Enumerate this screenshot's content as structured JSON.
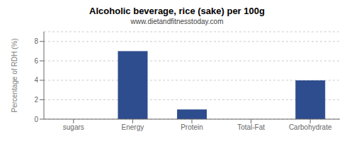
{
  "chart_data": {
    "type": "bar",
    "title": "Alcoholic beverage, rice (sake) per 100g",
    "subtitle": "www.dietandfitnesstoday.com",
    "categories": [
      "sugars",
      "Energy",
      "Protein",
      "Total-Fat",
      "Carbohydrate"
    ],
    "values": [
      0,
      7,
      1,
      0,
      4
    ],
    "color": "#2e4d8e",
    "ylabel": "Percentage of RDH (%)",
    "ylim": [
      0,
      9
    ],
    "yticks": [
      0,
      2,
      4,
      6,
      8
    ],
    "grid": true
  }
}
